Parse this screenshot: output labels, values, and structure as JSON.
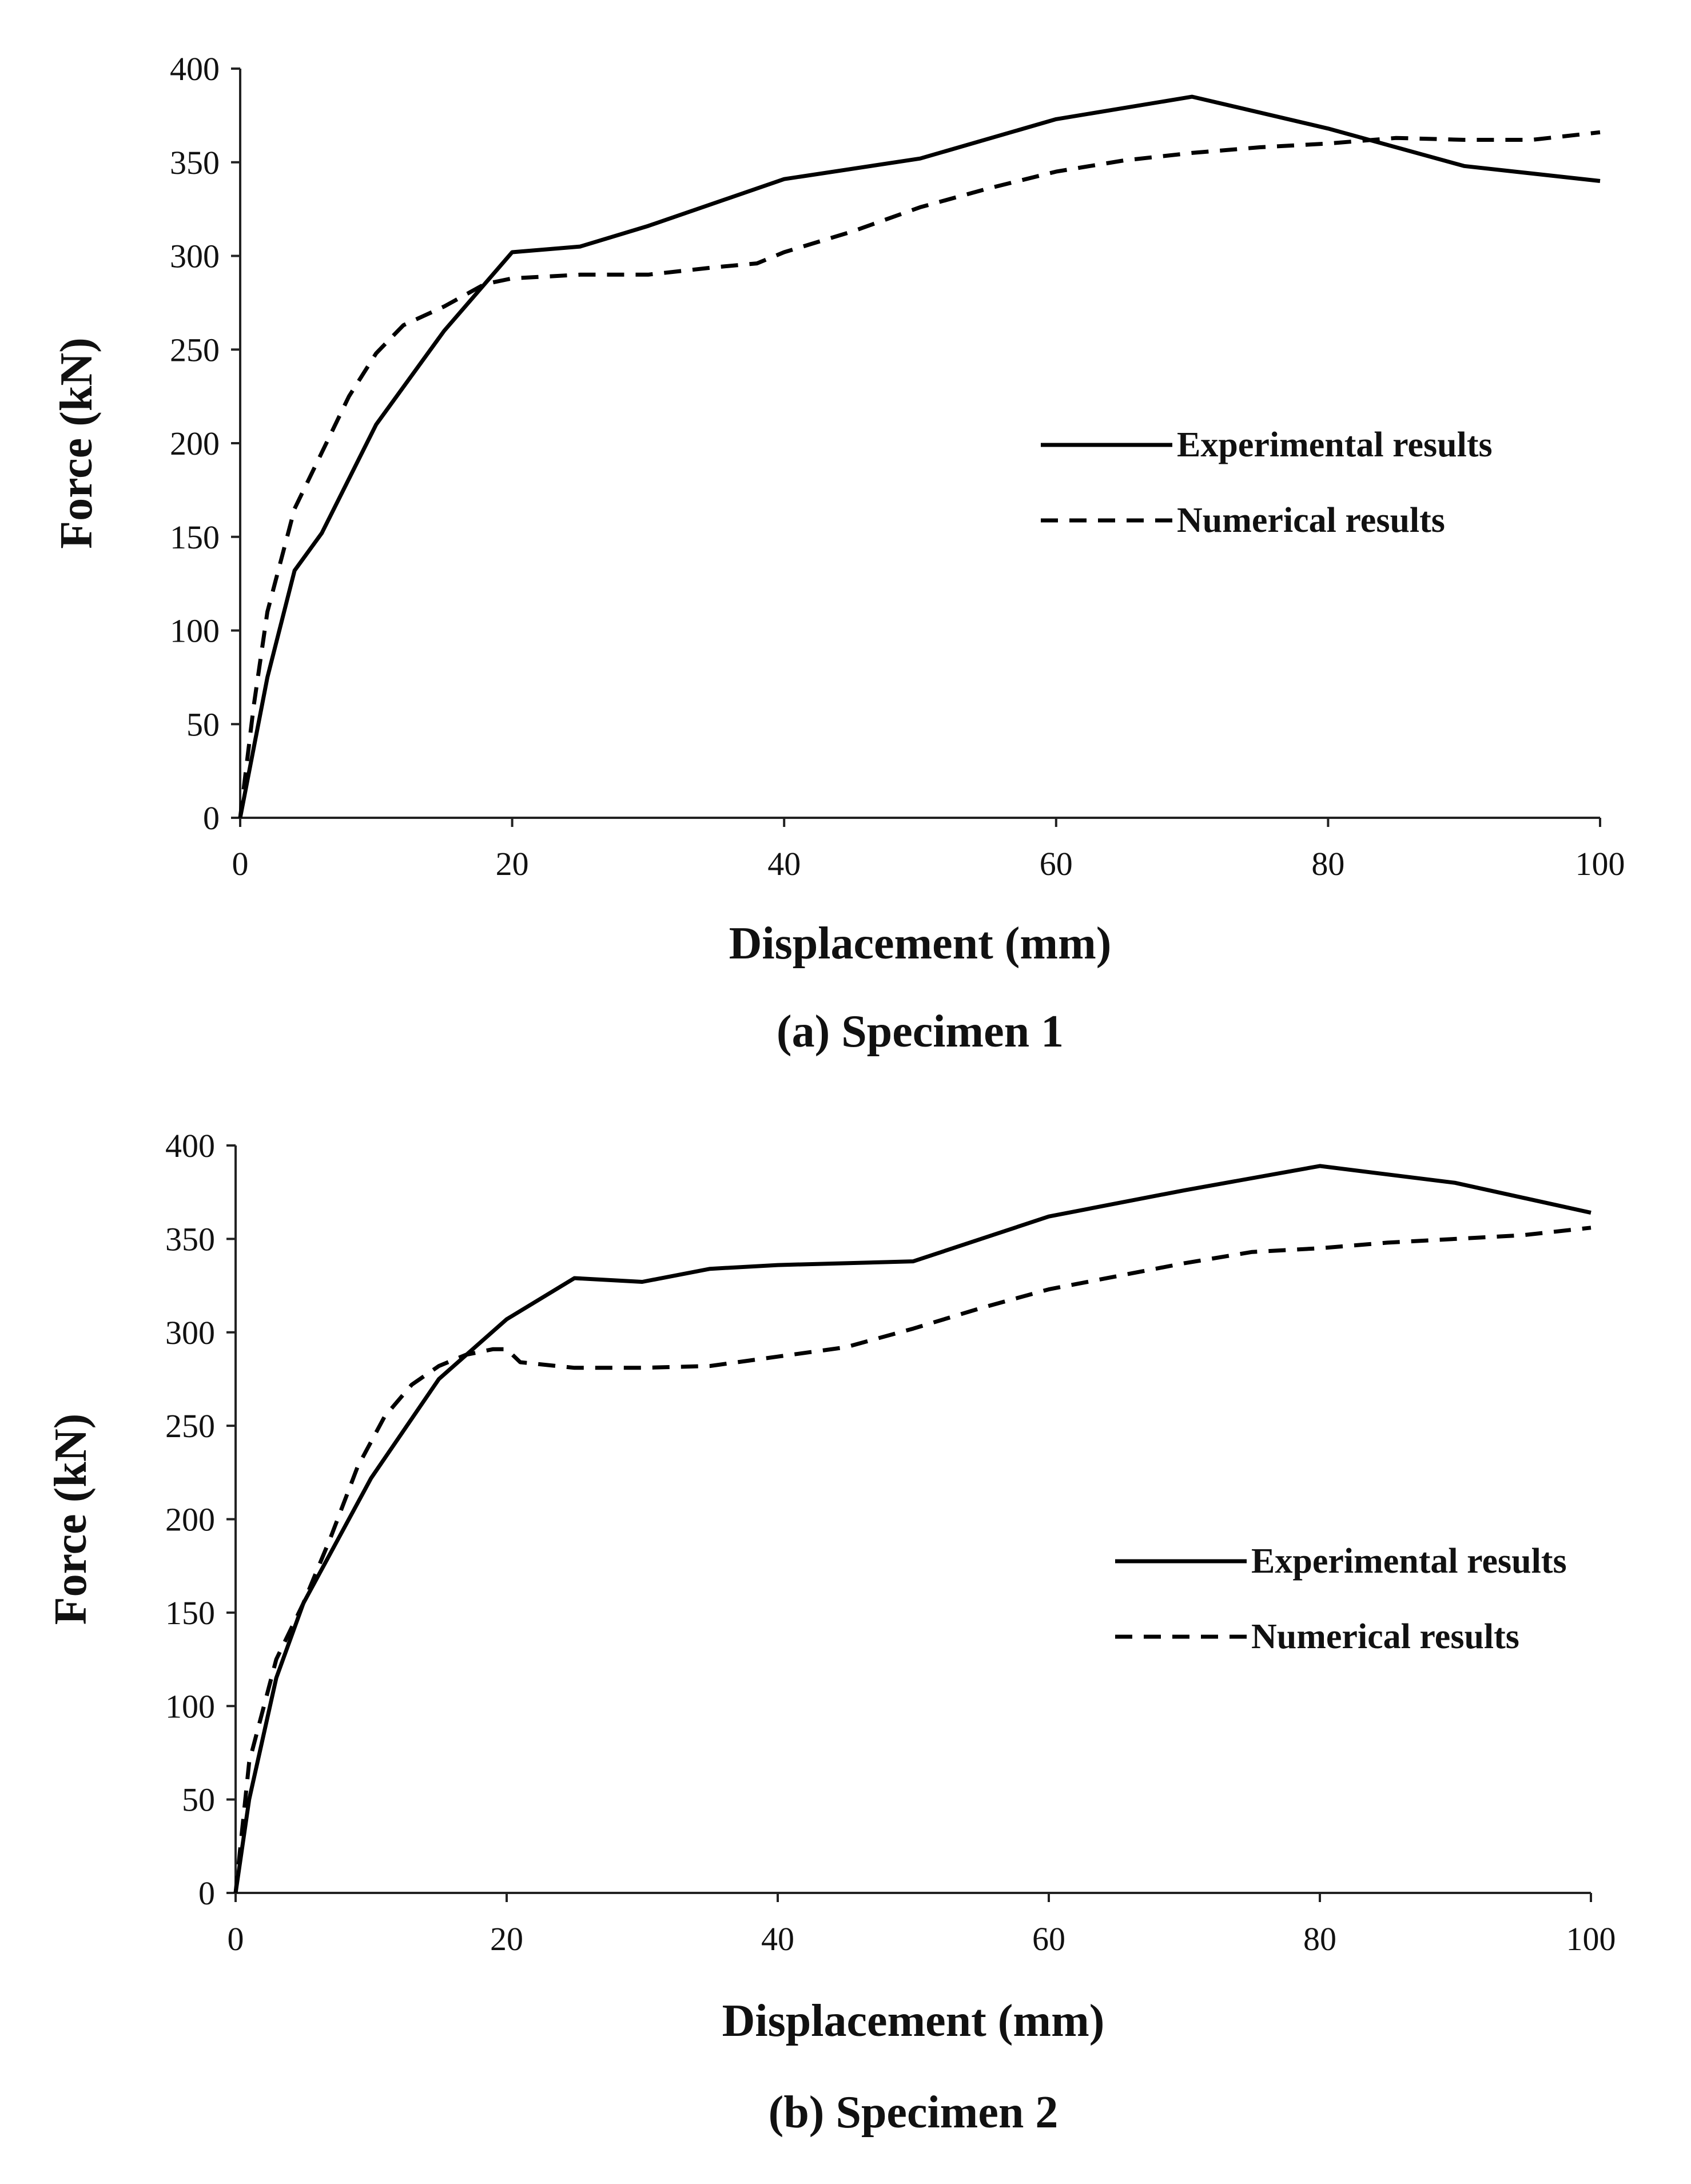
{
  "chart_data": [
    {
      "type": "line",
      "caption": "(a) Specimen 1",
      "xlabel": "Displacement (mm)",
      "ylabel": "Force (kN)",
      "xlim": [
        0,
        100
      ],
      "ylim": [
        0,
        400
      ],
      "xticks": [
        0,
        20,
        40,
        60,
        80,
        100
      ],
      "yticks": [
        0,
        50,
        100,
        150,
        200,
        250,
        300,
        350,
        400
      ],
      "grid": false,
      "legend_position": "right",
      "series": [
        {
          "name": "Experimental results",
          "style": "solid",
          "color": "#000000",
          "x": [
            0,
            2,
            4,
            6,
            10,
            15,
            20,
            25,
            30,
            40,
            50,
            60,
            70,
            80,
            90,
            100
          ],
          "y": [
            0,
            75,
            132,
            152,
            210,
            260,
            302,
            305,
            316,
            341,
            352,
            373,
            385,
            368,
            348,
            340
          ]
        },
        {
          "name": "Numerical results",
          "style": "dashed",
          "color": "#000000",
          "x": [
            0,
            1,
            2,
            4,
            6,
            8,
            10,
            12,
            15,
            18,
            20,
            25,
            30,
            35,
            38,
            40,
            45,
            50,
            55,
            60,
            65,
            70,
            75,
            80,
            85,
            90,
            95,
            100
          ],
          "y": [
            0,
            60,
            110,
            165,
            195,
            225,
            248,
            263,
            273,
            285,
            288,
            290,
            290,
            294,
            296,
            302,
            313,
            326,
            336,
            345,
            351,
            355,
            358,
            360,
            363,
            362,
            362,
            366
          ]
        }
      ]
    },
    {
      "type": "line",
      "caption": "(b) Specimen 2",
      "xlabel": "Displacement (mm)",
      "ylabel": "Force (kN)",
      "xlim": [
        0,
        100
      ],
      "ylim": [
        0,
        400
      ],
      "xticks": [
        0,
        20,
        40,
        60,
        80,
        100
      ],
      "yticks": [
        0,
        50,
        100,
        150,
        200,
        250,
        300,
        350,
        400
      ],
      "grid": false,
      "legend_position": "right",
      "series": [
        {
          "name": "Experimental results",
          "style": "solid",
          "color": "#000000",
          "x": [
            0,
            1,
            3,
            5,
            10,
            15,
            20,
            25,
            30,
            35,
            40,
            50,
            60,
            70,
            80,
            90,
            100
          ],
          "y": [
            0,
            50,
            115,
            155,
            222,
            275,
            307,
            329,
            327,
            334,
            336,
            338,
            362,
            376,
            389,
            380,
            364
          ]
        },
        {
          "name": "Numerical results",
          "style": "dashed",
          "color": "#000000",
          "x": [
            0,
            1,
            3,
            5,
            7,
            9,
            11,
            13,
            15,
            17,
            19,
            20,
            21,
            25,
            30,
            35,
            40,
            45,
            50,
            55,
            60,
            65,
            70,
            75,
            80,
            85,
            90,
            95,
            100
          ],
          "y": [
            0,
            70,
            125,
            155,
            190,
            228,
            255,
            272,
            282,
            288,
            291,
            291,
            284,
            281,
            281,
            282,
            287,
            292,
            302,
            313,
            323,
            330,
            337,
            343,
            345,
            348,
            350,
            352,
            356
          ]
        }
      ]
    }
  ]
}
